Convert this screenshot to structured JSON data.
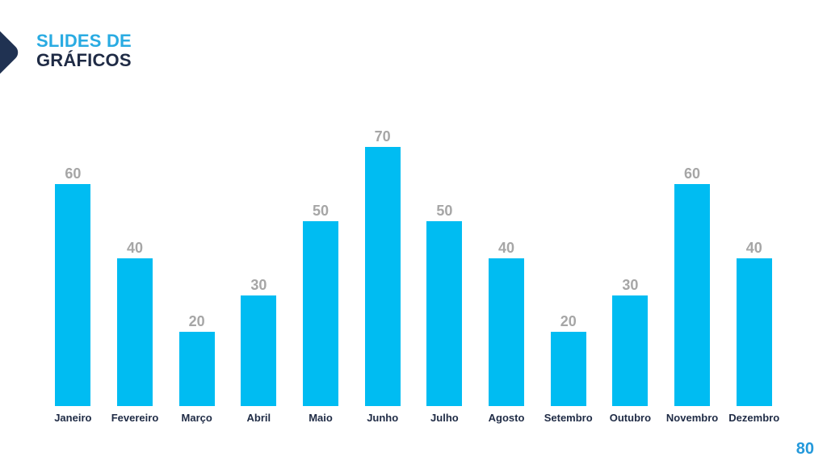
{
  "header": {
    "title_line1": "SLIDES DE",
    "title_line2": "GRÁFICOS"
  },
  "chart_data": {
    "type": "bar",
    "categories": [
      "Janeiro",
      "Fevereiro",
      "Março",
      "Abril",
      "Maio",
      "Junho",
      "Julho",
      "Agosto",
      "Setembro",
      "Outubro",
      "Novembro",
      "Dezembro"
    ],
    "values": [
      60,
      40,
      20,
      30,
      50,
      70,
      50,
      40,
      20,
      30,
      60,
      40
    ],
    "title": "",
    "xlabel": "",
    "ylabel": "",
    "ylim": [
      0,
      78
    ],
    "grid": false,
    "legend": false,
    "data_labels_shown": true,
    "bar_color": "#00BCF2",
    "value_label_color": "#A6A6A6",
    "category_label_color": "#1F2B45"
  },
  "footer": {
    "page_number": "80"
  },
  "colors": {
    "accent_blue": "#29ABE2",
    "navy": "#1F2B45",
    "arrow_navy": "#203252",
    "bar_cyan": "#00BCF2",
    "label_gray": "#A6A6A6",
    "page_number_blue": "#2499DB"
  }
}
